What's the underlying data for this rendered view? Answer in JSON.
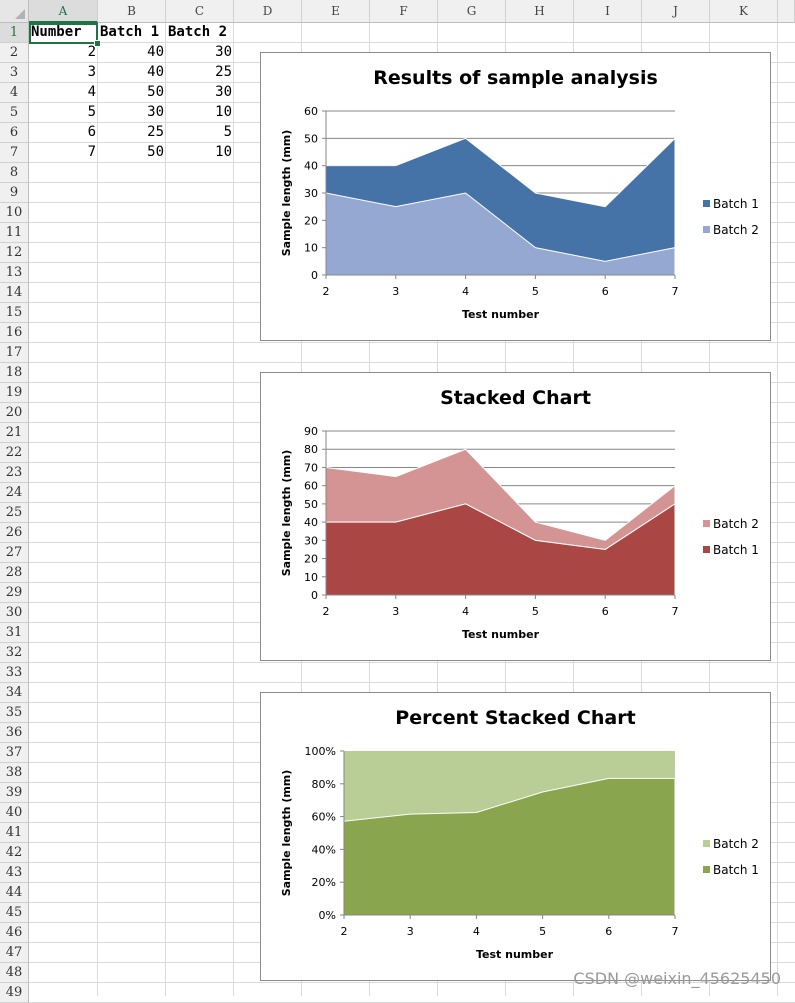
{
  "sheet": {
    "columns": [
      "A",
      "B",
      "C",
      "D",
      "E",
      "F",
      "G",
      "H",
      "I",
      "J",
      "K"
    ],
    "rows": 49,
    "active_cell": "A1",
    "cells": [
      {
        "row": 1,
        "col": "A",
        "value": "Number",
        "kind": "txt"
      },
      {
        "row": 1,
        "col": "B",
        "value": "Batch 1",
        "kind": "txt"
      },
      {
        "row": 1,
        "col": "C",
        "value": "Batch 2",
        "kind": "txt"
      },
      {
        "row": 2,
        "col": "A",
        "value": "2",
        "kind": "num"
      },
      {
        "row": 2,
        "col": "B",
        "value": "40",
        "kind": "num"
      },
      {
        "row": 2,
        "col": "C",
        "value": "30",
        "kind": "num"
      },
      {
        "row": 3,
        "col": "A",
        "value": "3",
        "kind": "num"
      },
      {
        "row": 3,
        "col": "B",
        "value": "40",
        "kind": "num"
      },
      {
        "row": 3,
        "col": "C",
        "value": "25",
        "kind": "num"
      },
      {
        "row": 4,
        "col": "A",
        "value": "4",
        "kind": "num"
      },
      {
        "row": 4,
        "col": "B",
        "value": "50",
        "kind": "num"
      },
      {
        "row": 4,
        "col": "C",
        "value": "30",
        "kind": "num"
      },
      {
        "row": 5,
        "col": "A",
        "value": "5",
        "kind": "num"
      },
      {
        "row": 5,
        "col": "B",
        "value": "30",
        "kind": "num"
      },
      {
        "row": 5,
        "col": "C",
        "value": "10",
        "kind": "num"
      },
      {
        "row": 6,
        "col": "A",
        "value": "6",
        "kind": "num"
      },
      {
        "row": 6,
        "col": "B",
        "value": "25",
        "kind": "num"
      },
      {
        "row": 6,
        "col": "C",
        "value": "5",
        "kind": "num"
      },
      {
        "row": 7,
        "col": "A",
        "value": "7",
        "kind": "num"
      },
      {
        "row": 7,
        "col": "B",
        "value": "50",
        "kind": "num"
      },
      {
        "row": 7,
        "col": "C",
        "value": "10",
        "kind": "num"
      }
    ]
  },
  "chart_data": [
    {
      "type": "area",
      "mode": "overlap",
      "title": "Results of sample analysis",
      "xlabel": "Test number",
      "ylabel": "Sample length (mm)",
      "x": [
        2,
        3,
        4,
        5,
        6,
        7
      ],
      "ylim": [
        0,
        60
      ],
      "yticks": [
        0,
        10,
        20,
        30,
        40,
        50,
        60
      ],
      "ytick_labels": [
        "0",
        "10",
        "20",
        "30",
        "40",
        "50",
        "60"
      ],
      "grid": true,
      "legend_position": "right",
      "series": [
        {
          "name": "Batch 1",
          "values": [
            40,
            40,
            50,
            30,
            25,
            50
          ],
          "color": "#4572a7"
        },
        {
          "name": "Batch 2",
          "values": [
            30,
            25,
            30,
            10,
            5,
            10
          ],
          "color": "#95a8d1"
        }
      ],
      "legend": [
        "Batch 1",
        "Batch 2"
      ]
    },
    {
      "type": "area",
      "mode": "stacked",
      "title": "Stacked Chart",
      "xlabel": "Test number",
      "ylabel": "Sample length (mm)",
      "x": [
        2,
        3,
        4,
        5,
        6,
        7
      ],
      "ylim": [
        0,
        90
      ],
      "yticks": [
        0,
        10,
        20,
        30,
        40,
        50,
        60,
        70,
        80,
        90
      ],
      "ytick_labels": [
        "0",
        "10",
        "20",
        "30",
        "40",
        "50",
        "60",
        "70",
        "80",
        "90"
      ],
      "grid": true,
      "legend_position": "right",
      "series": [
        {
          "name": "Batch 1",
          "values": [
            40,
            40,
            50,
            30,
            25,
            50
          ],
          "color": "#aa4643"
        },
        {
          "name": "Batch 2",
          "values": [
            30,
            25,
            30,
            10,
            5,
            10
          ],
          "color": "#d49493"
        }
      ],
      "legend": [
        "Batch 2",
        "Batch 1"
      ]
    },
    {
      "type": "area",
      "mode": "percent",
      "title": "Percent Stacked Chart",
      "xlabel": "Test number",
      "ylabel": "Sample length (mm)",
      "x": [
        2,
        3,
        4,
        5,
        6,
        7
      ],
      "ylim": [
        0,
        100
      ],
      "yticks": [
        0,
        20,
        40,
        60,
        80,
        100
      ],
      "ytick_labels": [
        "0%",
        "20%",
        "40%",
        "60%",
        "80%",
        "100%"
      ],
      "grid": false,
      "legend_position": "right",
      "series": [
        {
          "name": "Batch 1",
          "values": [
            40,
            40,
            50,
            30,
            25,
            50
          ],
          "color": "#89a54e"
        },
        {
          "name": "Batch 2",
          "values": [
            30,
            25,
            30,
            10,
            5,
            10
          ],
          "color": "#b9cd96"
        }
      ],
      "legend": [
        "Batch 2",
        "Batch 1"
      ]
    }
  ],
  "watermark": "CSDN @weixin_45625450"
}
